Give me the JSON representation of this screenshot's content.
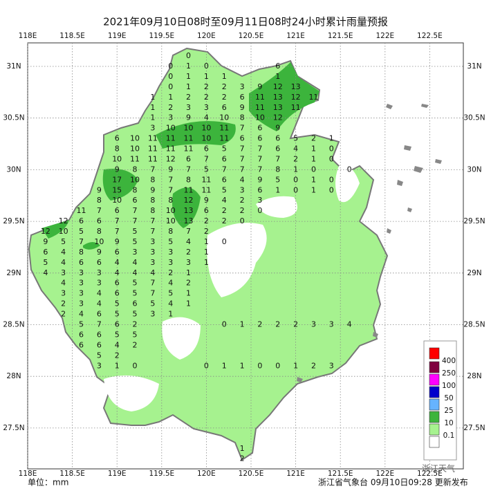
{
  "title": "2021年09月10日08时至09月11日08时24小时累计雨量预报",
  "unit": "单位：mm",
  "footer": "浙江省气象台 09月10日09:28 更新发布",
  "watermark": "浙江天气",
  "lon_ticks": [
    {
      "value": 118,
      "label": "118E"
    },
    {
      "value": 118.5,
      "label": "118.5E"
    },
    {
      "value": 119,
      "label": "119E"
    },
    {
      "value": 119.5,
      "label": "119.5E"
    },
    {
      "value": 120,
      "label": "120E"
    },
    {
      "value": 120.5,
      "label": "120.5E"
    },
    {
      "value": 121,
      "label": "121E"
    },
    {
      "value": 121.5,
      "label": "121.5E"
    },
    {
      "value": 122,
      "label": "122E"
    },
    {
      "value": 122.5,
      "label": "122.5E"
    }
  ],
  "lat_ticks": [
    {
      "value": 31,
      "label": "31N"
    },
    {
      "value": 30.5,
      "label": "30.5N"
    },
    {
      "value": 30,
      "label": "30N"
    },
    {
      "value": 29.5,
      "label": "29.5N"
    },
    {
      "value": 29,
      "label": "29N"
    },
    {
      "value": 28.5,
      "label": "28.5N"
    },
    {
      "value": 28,
      "label": "28N"
    },
    {
      "value": 27.5,
      "label": "27.5N"
    }
  ],
  "legend": {
    "labels": [
      400,
      250,
      100,
      50,
      25,
      10,
      0.1
    ],
    "colors": [
      "#ff0000",
      "#800040",
      "#ff00ff",
      "#0000cc",
      "#66b3ff",
      "#3cb43c",
      "#a6f28f",
      "#ffffff"
    ]
  },
  "grid": {
    "lons": [
      118.2,
      118.4,
      118.6,
      118.8,
      119.0,
      119.2,
      119.4,
      119.6,
      119.8,
      120.0,
      120.2,
      120.4,
      120.6,
      120.8,
      121.0,
      121.2,
      121.4,
      121.6
    ],
    "rows": [
      {
        "lat": 31.1,
        "values": [
          null,
          null,
          null,
          null,
          null,
          null,
          null,
          null,
          0,
          null,
          null,
          null,
          null,
          null,
          null,
          null,
          null,
          null
        ]
      },
      {
        "lat": 31.0,
        "values": [
          null,
          null,
          null,
          null,
          null,
          null,
          null,
          0,
          1,
          0,
          null,
          null,
          null,
          6,
          null,
          null,
          null,
          null
        ]
      },
      {
        "lat": 30.9,
        "values": [
          null,
          null,
          null,
          null,
          null,
          null,
          null,
          0,
          1,
          1,
          1,
          null,
          null,
          1,
          null,
          null,
          null,
          null
        ]
      },
      {
        "lat": 30.8,
        "values": [
          null,
          null,
          null,
          null,
          null,
          null,
          null,
          0,
          1,
          2,
          2,
          3,
          9,
          12,
          13,
          null,
          null,
          null
        ]
      },
      {
        "lat": 30.7,
        "values": [
          null,
          null,
          null,
          null,
          null,
          null,
          1,
          1,
          2,
          2,
          2,
          6,
          11,
          13,
          12,
          11,
          null,
          null
        ]
      },
      {
        "lat": 30.6,
        "values": [
          null,
          null,
          null,
          null,
          null,
          null,
          1,
          2,
          3,
          3,
          6,
          9,
          11,
          13,
          11,
          null,
          null,
          null
        ]
      },
      {
        "lat": 30.5,
        "values": [
          null,
          null,
          null,
          null,
          null,
          null,
          1,
          3,
          9,
          4,
          10,
          8,
          10,
          12,
          null,
          null,
          null,
          null
        ]
      },
      {
        "lat": 30.4,
        "values": [
          null,
          null,
          null,
          null,
          null,
          null,
          3,
          10,
          10,
          10,
          11,
          7,
          6,
          9,
          null,
          null,
          null,
          null
        ]
      },
      {
        "lat": 30.3,
        "values": [
          null,
          null,
          null,
          null,
          6,
          10,
          11,
          11,
          11,
          10,
          11,
          6,
          6,
          6,
          5,
          2,
          1,
          null
        ]
      },
      {
        "lat": 30.2,
        "values": [
          null,
          null,
          null,
          null,
          8,
          10,
          11,
          11,
          11,
          6,
          5,
          7,
          7,
          6,
          4,
          1,
          0,
          null
        ]
      },
      {
        "lat": 30.1,
        "values": [
          null,
          null,
          null,
          null,
          10,
          11,
          11,
          12,
          6,
          7,
          6,
          7,
          7,
          7,
          2,
          1,
          0,
          null
        ]
      },
      {
        "lat": 30.0,
        "values": [
          null,
          null,
          null,
          null,
          9,
          8,
          7,
          9,
          7,
          5,
          7,
          7,
          7,
          8,
          1,
          0,
          null,
          0
        ]
      },
      {
        "lat": 29.9,
        "values": [
          null,
          null,
          null,
          null,
          17,
          10,
          8,
          7,
          8,
          11,
          6,
          4,
          9,
          5,
          0,
          1,
          0,
          null
        ]
      },
      {
        "lat": 29.8,
        "values": [
          null,
          null,
          null,
          9,
          15,
          8,
          9,
          7,
          11,
          11,
          5,
          3,
          6,
          1,
          0,
          1,
          0,
          null
        ]
      },
      {
        "lat": 29.7,
        "values": [
          null,
          null,
          null,
          8,
          10,
          6,
          8,
          8,
          12,
          9,
          4,
          2,
          3,
          null,
          null,
          null,
          null,
          null
        ]
      },
      {
        "lat": 29.6,
        "values": [
          null,
          null,
          11,
          7,
          6,
          7,
          8,
          10,
          13,
          6,
          2,
          2,
          0,
          null,
          null,
          null,
          null,
          null
        ]
      },
      {
        "lat": 29.5,
        "values": [
          null,
          12,
          6,
          6,
          7,
          7,
          7,
          10,
          13,
          2,
          2,
          0,
          null,
          null,
          null,
          null,
          null,
          null
        ]
      },
      {
        "lat": 29.4,
        "values": [
          12,
          10,
          5,
          8,
          7,
          5,
          7,
          8,
          7,
          2,
          null,
          null,
          null,
          null,
          null,
          null,
          null,
          null
        ]
      },
      {
        "lat": 29.3,
        "values": [
          9,
          5,
          7,
          10,
          9,
          5,
          3,
          5,
          4,
          1,
          0,
          null,
          null,
          null,
          null,
          null,
          null,
          null
        ]
      },
      {
        "lat": 29.2,
        "values": [
          6,
          4,
          8,
          9,
          6,
          3,
          3,
          3,
          2,
          1,
          null,
          null,
          null,
          null,
          null,
          null,
          null,
          null
        ]
      },
      {
        "lat": 29.1,
        "values": [
          5,
          4,
          6,
          6,
          4,
          4,
          3,
          3,
          3,
          1,
          null,
          null,
          null,
          null,
          null,
          null,
          null,
          null
        ]
      },
      {
        "lat": 29.0,
        "values": [
          4,
          3,
          3,
          3,
          4,
          4,
          4,
          2,
          1,
          null,
          null,
          null,
          null,
          null,
          null,
          null,
          null,
          null
        ]
      },
      {
        "lat": 28.9,
        "values": [
          null,
          4,
          3,
          3,
          6,
          5,
          7,
          4,
          2,
          null,
          null,
          null,
          null,
          null,
          null,
          null,
          null,
          null
        ]
      },
      {
        "lat": 28.8,
        "values": [
          null,
          3,
          3,
          4,
          6,
          5,
          7,
          5,
          1,
          null,
          null,
          null,
          null,
          null,
          null,
          null,
          null,
          null
        ]
      },
      {
        "lat": 28.7,
        "values": [
          null,
          2,
          3,
          4,
          5,
          6,
          5,
          4,
          1,
          null,
          null,
          null,
          null,
          null,
          null,
          null,
          null,
          null
        ]
      },
      {
        "lat": 28.6,
        "values": [
          null,
          2,
          4,
          6,
          5,
          5,
          3,
          1,
          null,
          null,
          null,
          null,
          null,
          null,
          null,
          null,
          null,
          null
        ]
      },
      {
        "lat": 28.5,
        "values": [
          null,
          null,
          5,
          7,
          6,
          2,
          null,
          null,
          null,
          null,
          0,
          1,
          2,
          2,
          2,
          3,
          3,
          4
        ]
      },
      {
        "lat": 28.4,
        "values": [
          null,
          null,
          6,
          6,
          5,
          5,
          null,
          null,
          null,
          null,
          null,
          null,
          null,
          null,
          null,
          null,
          null,
          null
        ]
      },
      {
        "lat": 28.3,
        "values": [
          null,
          null,
          6,
          6,
          4,
          2,
          null,
          null,
          null,
          null,
          null,
          null,
          null,
          null,
          null,
          null,
          null,
          null
        ]
      },
      {
        "lat": 28.2,
        "values": [
          null,
          null,
          null,
          5,
          2,
          null,
          null,
          null,
          null,
          null,
          null,
          null,
          null,
          null,
          null,
          null,
          null,
          null
        ]
      },
      {
        "lat": 28.1,
        "values": [
          null,
          null,
          null,
          3,
          1,
          0,
          null,
          null,
          null,
          0,
          1,
          1,
          0,
          0,
          1,
          2,
          3,
          null
        ]
      },
      {
        "lat": 27.3,
        "values": [
          null,
          null,
          null,
          null,
          null,
          null,
          null,
          null,
          null,
          null,
          null,
          1,
          null,
          null,
          null,
          null,
          null,
          null
        ]
      },
      {
        "lat": 27.2,
        "values": [
          null,
          null,
          null,
          null,
          null,
          null,
          null,
          null,
          null,
          null,
          null,
          2,
          null,
          null,
          null,
          null,
          null,
          null
        ]
      }
    ]
  }
}
